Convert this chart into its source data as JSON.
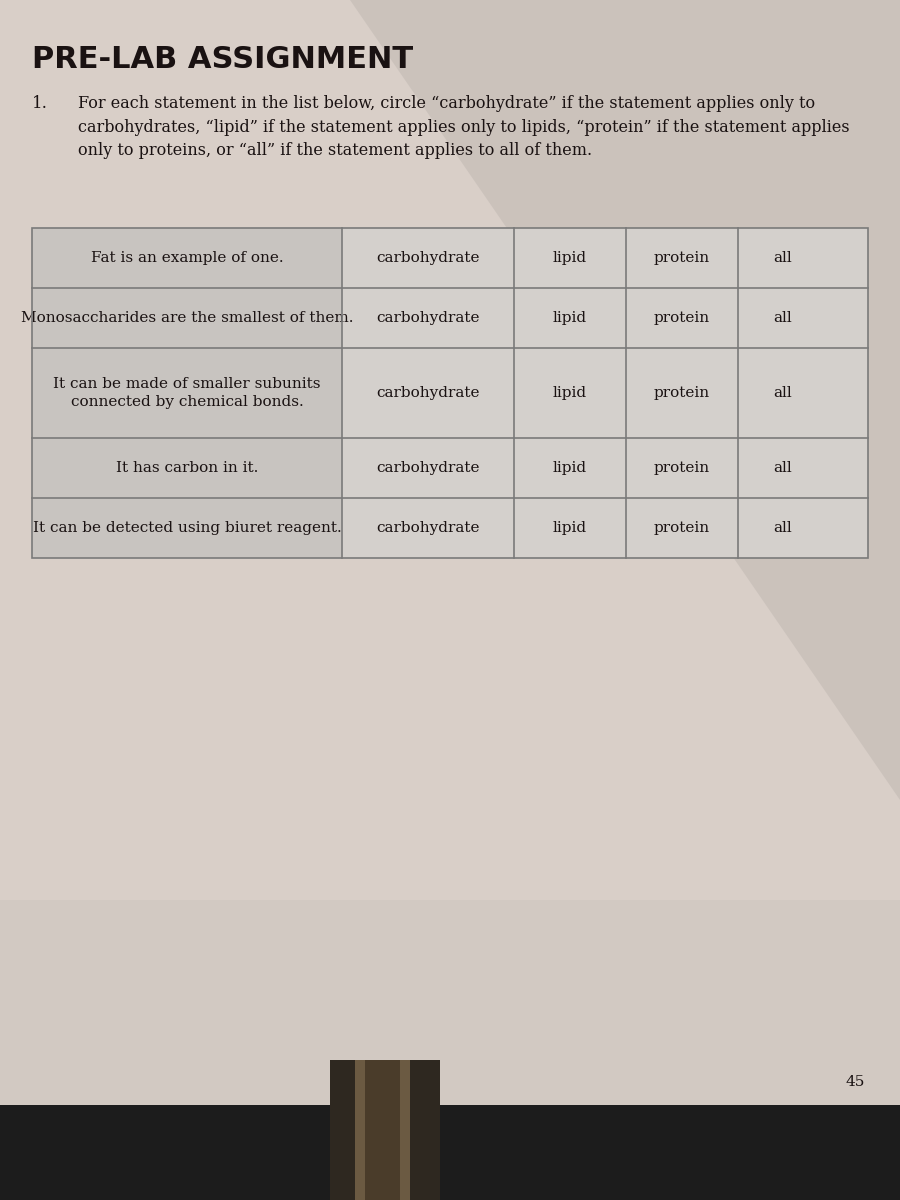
{
  "title": "PRE-LAB ASSIGNMENT",
  "question_num": "1.",
  "question_text": "For each statement in the list below, circle “carbohydrate” if the statement applies only to\ncarbohydrates, “lipid” if the statement applies only to lipids, “protein” if the statement applies\nonly to proteins, or “all” if the statement applies to all of them.",
  "table_rows": [
    {
      "statement": "Fat is an example of one.",
      "cols": [
        "carbohydrate",
        "lipid",
        "protein",
        "all"
      ]
    },
    {
      "statement": "Monosaccharides are the smallest of them.",
      "cols": [
        "carbohydrate",
        "lipid",
        "protein",
        "all"
      ]
    },
    {
      "statement": "It can be made of smaller subunits\nconnected by chemical bonds.",
      "cols": [
        "carbohydrate",
        "lipid",
        "protein",
        "all"
      ]
    },
    {
      "statement": "It has carbon in it.",
      "cols": [
        "carbohydrate",
        "lipid",
        "protein",
        "all"
      ]
    },
    {
      "statement": "It can be detected using biuret reagent.",
      "cols": [
        "carbohydrate",
        "lipid",
        "protein",
        "all"
      ]
    }
  ],
  "page_number": "45",
  "bg_page_color": "#d9cfc8",
  "bg_shadow_color": "#c0b8b2",
  "bg_bottom_dark": "#1c1c1c",
  "spine_color1": "#3a332a",
  "spine_color2": "#5a4e3c",
  "table_stmt_bg": "#c8c4c0",
  "table_ans_bg": "#d4d0cc",
  "table_border_color": "#7a7a7a",
  "title_color": "#1a1212",
  "text_color": "#1a1212"
}
